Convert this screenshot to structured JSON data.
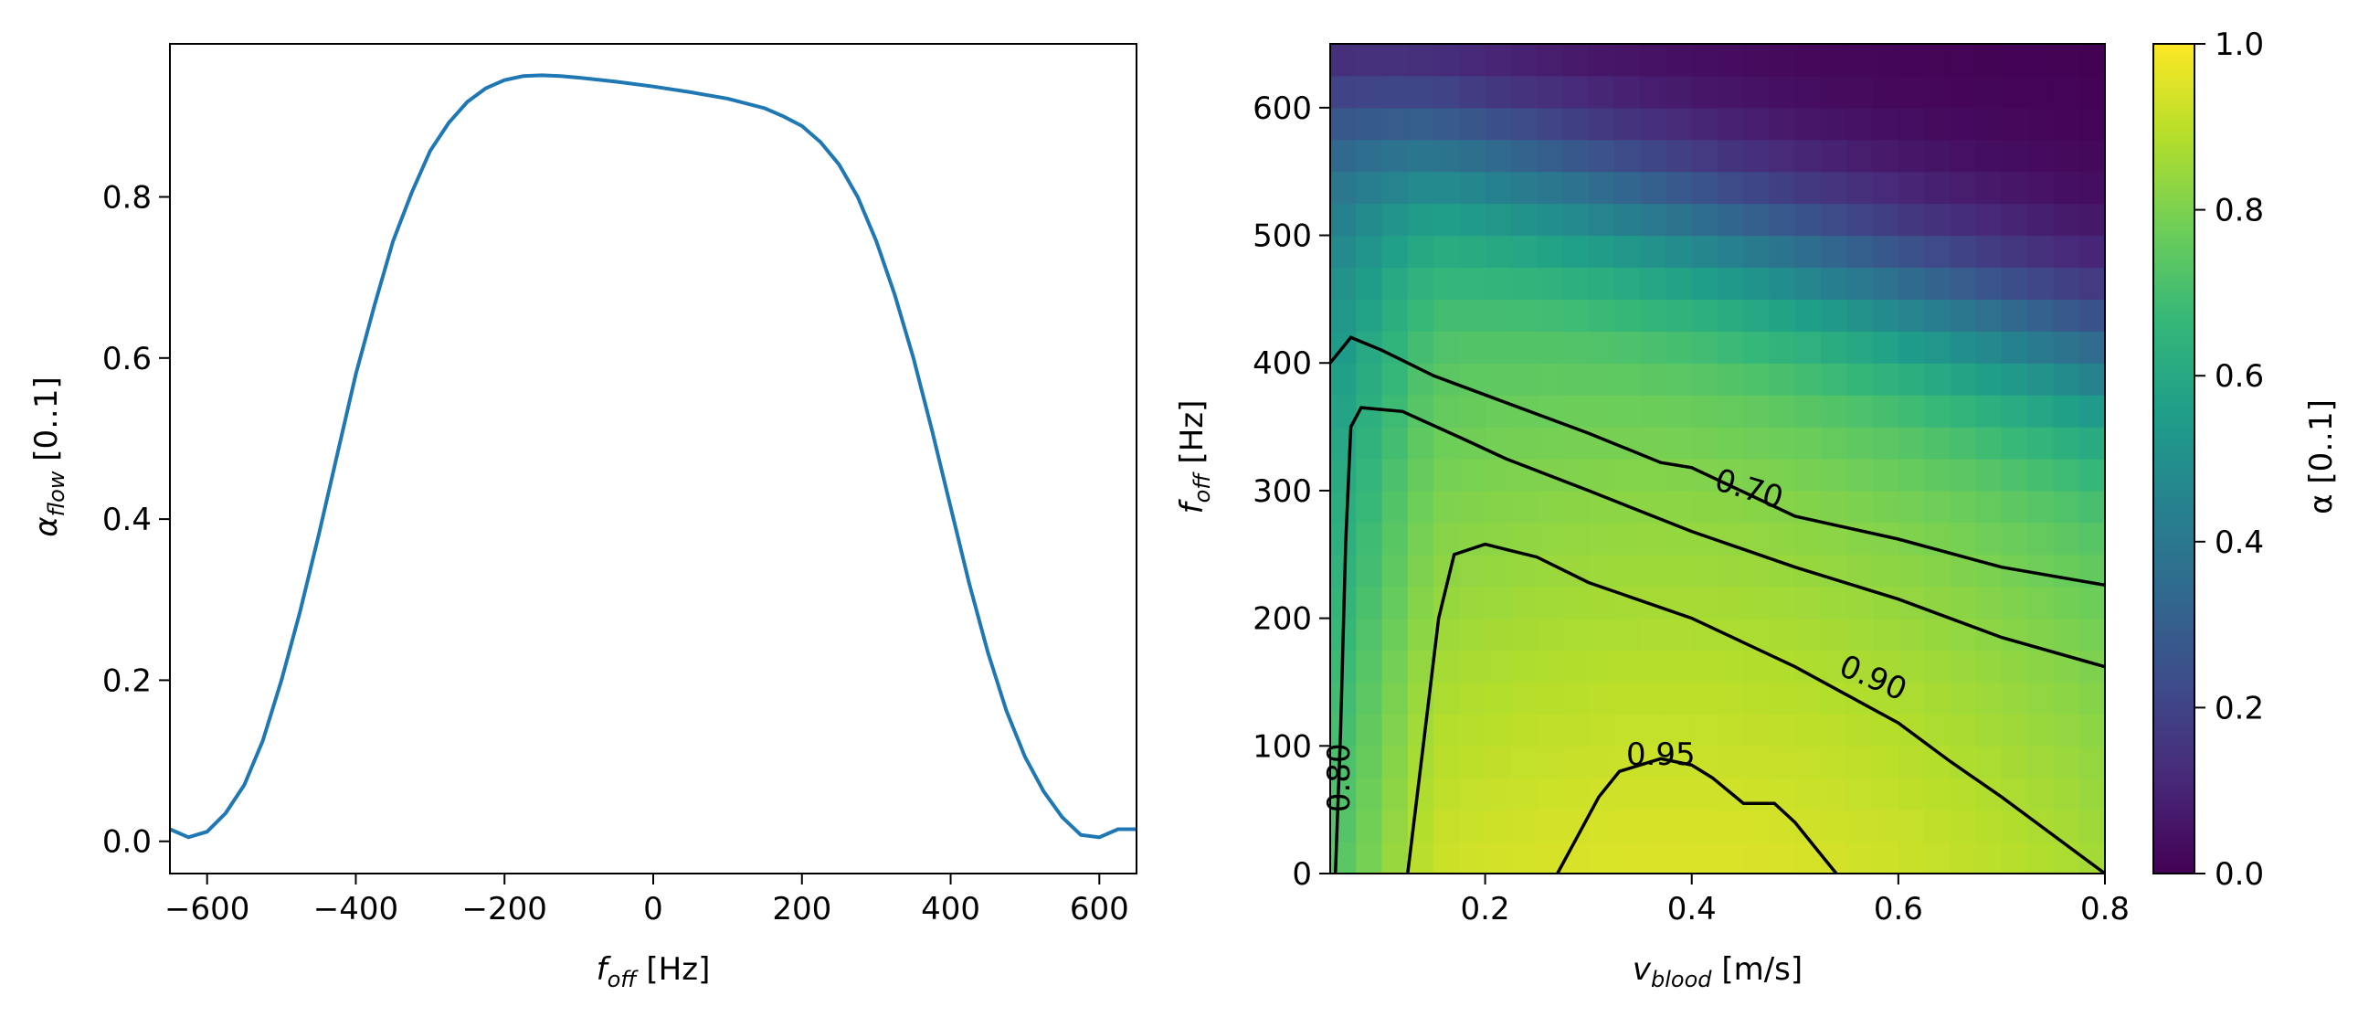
{
  "chart_data": [
    {
      "type": "line",
      "xlabel": {
        "symbol": "f",
        "sub": "off",
        "unit": "[Hz]"
      },
      "ylabel": {
        "symbol": "α",
        "sub": "flow",
        "unit": "[0‥1]"
      },
      "xlim": [
        -650,
        650
      ],
      "ylim": [
        -0.04,
        0.99
      ],
      "xticks": [
        -600,
        -400,
        -200,
        0,
        200,
        400,
        600
      ],
      "xtick_labels": [
        "−600",
        "−400",
        "−200",
        "0",
        "200",
        "400",
        "600"
      ],
      "yticks": [
        0.0,
        0.2,
        0.4,
        0.6,
        0.8
      ],
      "ytick_labels": [
        "0.0",
        "0.2",
        "0.4",
        "0.6",
        "0.8"
      ],
      "color": "#1f77b4",
      "series": [
        {
          "name": "alpha_flow",
          "x": [
            -650,
            -625,
            -600,
            -575,
            -550,
            -525,
            -500,
            -475,
            -450,
            -425,
            -400,
            -375,
            -350,
            -325,
            -300,
            -275,
            -250,
            -225,
            -200,
            -175,
            -150,
            -125,
            -100,
            -50,
            0,
            50,
            100,
            150,
            175,
            200,
            225,
            250,
            275,
            300,
            325,
            350,
            375,
            400,
            425,
            450,
            475,
            500,
            525,
            550,
            575,
            600,
            625,
            650
          ],
          "y": [
            0.015,
            0.005,
            0.012,
            0.035,
            0.07,
            0.125,
            0.2,
            0.285,
            0.38,
            0.48,
            0.58,
            0.665,
            0.745,
            0.805,
            0.857,
            0.892,
            0.918,
            0.935,
            0.945,
            0.95,
            0.951,
            0.95,
            0.948,
            0.943,
            0.937,
            0.93,
            0.922,
            0.91,
            0.9,
            0.888,
            0.868,
            0.84,
            0.8,
            0.745,
            0.678,
            0.6,
            0.51,
            0.415,
            0.32,
            0.235,
            0.162,
            0.105,
            0.062,
            0.03,
            0.008,
            0.005,
            0.015,
            0.015
          ]
        }
      ]
    },
    {
      "type": "heatmap",
      "xlabel": {
        "symbol": "v",
        "sub": "blood",
        "unit": "[m/s]"
      },
      "ylabel": {
        "symbol": "f",
        "sub": "off",
        "unit": "[Hz]"
      },
      "xlim": [
        0.05,
        0.8
      ],
      "ylim": [
        0,
        650
      ],
      "xticks": [
        0.2,
        0.4,
        0.6,
        0.8
      ],
      "xtick_labels": [
        "0.2",
        "0.4",
        "0.6",
        "0.8"
      ],
      "yticks": [
        0,
        100,
        200,
        300,
        400,
        500,
        600
      ],
      "ytick_labels": [
        "0",
        "100",
        "200",
        "300",
        "400",
        "500",
        "600"
      ],
      "grid": {
        "nx": 30,
        "ny": 26,
        "v_min": 0.05,
        "v_max": 0.8,
        "f_min": 0,
        "f_max": 650
      },
      "colorbar": {
        "label": "α [0‥1]",
        "range": [
          0.0,
          1.0
        ],
        "ticks": [
          0.0,
          0.2,
          0.4,
          0.6,
          0.8,
          1.0
        ],
        "tick_labels": [
          "0.0",
          "0.2",
          "0.4",
          "0.6",
          "0.8",
          "1.0"
        ],
        "colormap": "viridis",
        "stops": [
          "#440154",
          "#482878",
          "#3e4a89",
          "#31688e",
          "#26828e",
          "#1f9e89",
          "#35b779",
          "#6ece58",
          "#b5de2b",
          "#fde725"
        ]
      },
      "contours": [
        {
          "level": "0.70",
          "points": [
            [
              0.05,
              400
            ],
            [
              0.07,
              420
            ],
            [
              0.1,
              410
            ],
            [
              0.15,
              390
            ],
            [
              0.2,
              375
            ],
            [
              0.3,
              345
            ],
            [
              0.37,
              322
            ],
            [
              0.4,
              318
            ],
            [
              0.5,
              280
            ],
            [
              0.6,
              262
            ],
            [
              0.7,
              240
            ],
            [
              0.8,
              226
            ]
          ]
        },
        {
          "level": "0.80",
          "points": [
            [
              0.055,
              0
            ],
            [
              0.06,
              110
            ],
            [
              0.065,
              260
            ],
            [
              0.07,
              350
            ],
            [
              0.08,
              365
            ],
            [
              0.12,
              362
            ],
            [
              0.18,
              340
            ],
            [
              0.22,
              325
            ],
            [
              0.3,
              300
            ],
            [
              0.4,
              268
            ],
            [
              0.5,
              240
            ],
            [
              0.6,
              215
            ],
            [
              0.7,
              185
            ],
            [
              0.8,
              162
            ]
          ]
        },
        {
          "level": "0.90",
          "points": [
            [
              0.125,
              0
            ],
            [
              0.14,
              100
            ],
            [
              0.155,
              200
            ],
            [
              0.17,
              250
            ],
            [
              0.2,
              258
            ],
            [
              0.25,
              248
            ],
            [
              0.3,
              228
            ],
            [
              0.4,
              200
            ],
            [
              0.5,
              162
            ],
            [
              0.55,
              140
            ],
            [
              0.6,
              118
            ],
            [
              0.65,
              88
            ],
            [
              0.7,
              60
            ],
            [
              0.75,
              30
            ],
            [
              0.8,
              0
            ]
          ]
        },
        {
          "level": "0.95",
          "points": [
            [
              0.27,
              0
            ],
            [
              0.29,
              30
            ],
            [
              0.31,
              60
            ],
            [
              0.33,
              80
            ],
            [
              0.37,
              90
            ],
            [
              0.4,
              85
            ],
            [
              0.42,
              75
            ],
            [
              0.45,
              55
            ],
            [
              0.48,
              55
            ],
            [
              0.5,
              40
            ],
            [
              0.52,
              20
            ],
            [
              0.54,
              0
            ]
          ]
        }
      ],
      "contour_labels": [
        {
          "text": "0.70",
          "v": 0.455,
          "f": 300,
          "angle": 17
        },
        {
          "text": "0.90",
          "v": 0.575,
          "f": 152,
          "angle": 23
        },
        {
          "text": "0.95",
          "v": 0.37,
          "f": 92,
          "angle": 0
        },
        {
          "text": "0.80",
          "v": 0.06,
          "f": 75,
          "angle": -90
        }
      ]
    }
  ]
}
